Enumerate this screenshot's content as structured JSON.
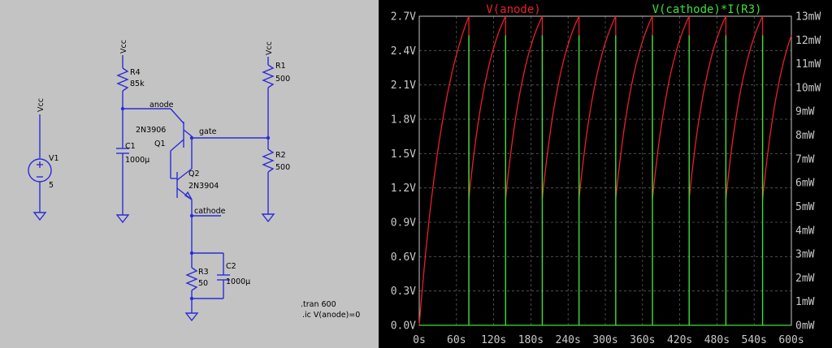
{
  "schematic": {
    "labels": {
      "vcc_left": "Vcc",
      "vcc_mid": "Vcc",
      "vcc_right": "Vcc",
      "v1": "V1",
      "v1_value": "5",
      "r4": "R4",
      "r4_value": "85k",
      "anode": "anode",
      "q1_model": "2N3906",
      "q1": "Q1",
      "gate": "gate",
      "c1": "C1",
      "c1_value": "1000µ",
      "q2": "Q2",
      "q2_model": "2N3904",
      "cathode": "cathode",
      "r1": "R1",
      "r1_value": "500",
      "r2": "R2",
      "r2_value": "500",
      "r3": "R3",
      "r3_value": "50",
      "c2": "C2",
      "c2_value": "1000µ",
      "tran": ".tran 600",
      "ic": ".ic V(anode)=0"
    },
    "wire_color": "#2a2cd8"
  },
  "chart_data": {
    "type": "line",
    "background": "#000000",
    "grid": true,
    "x_ticks": [
      "0s",
      "60s",
      "120s",
      "180s",
      "240s",
      "300s",
      "360s",
      "420s",
      "480s",
      "540s",
      "600s"
    ],
    "xlim": [
      0,
      600
    ],
    "y_left_ticks": [
      "0.0V",
      "0.3V",
      "0.6V",
      "0.9V",
      "1.2V",
      "1.5V",
      "1.8V",
      "2.1V",
      "2.4V",
      "2.7V"
    ],
    "y_left_lim": [
      0,
      2.7
    ],
    "y_right_ticks": [
      "0mW",
      "1mW",
      "2mW",
      "3mW",
      "4mW",
      "5mW",
      "6mW",
      "7mW",
      "8mW",
      "9mW",
      "10mW",
      "11mW",
      "12mW",
      "13mW"
    ],
    "y_right_lim": [
      0,
      13
    ],
    "series": [
      {
        "name": "V(anode)",
        "color": "#e8202a",
        "axis": "left",
        "shape": "sawtooth",
        "initial_time": 0,
        "initial_value": 0,
        "first_peak_time": 80,
        "period": 59.2,
        "peak_value": 2.7,
        "reset_value": 1.1,
        "end_time": 600,
        "end_value": 2.07
      },
      {
        "name": "V(cathode)*I(R3)",
        "color": "#3be03b",
        "axis": "right",
        "shape": "spikes",
        "first_spike_time": 80,
        "period": 59.2,
        "spike_peak": 12.2,
        "baseline": 0,
        "spike_count": 9
      }
    ]
  }
}
